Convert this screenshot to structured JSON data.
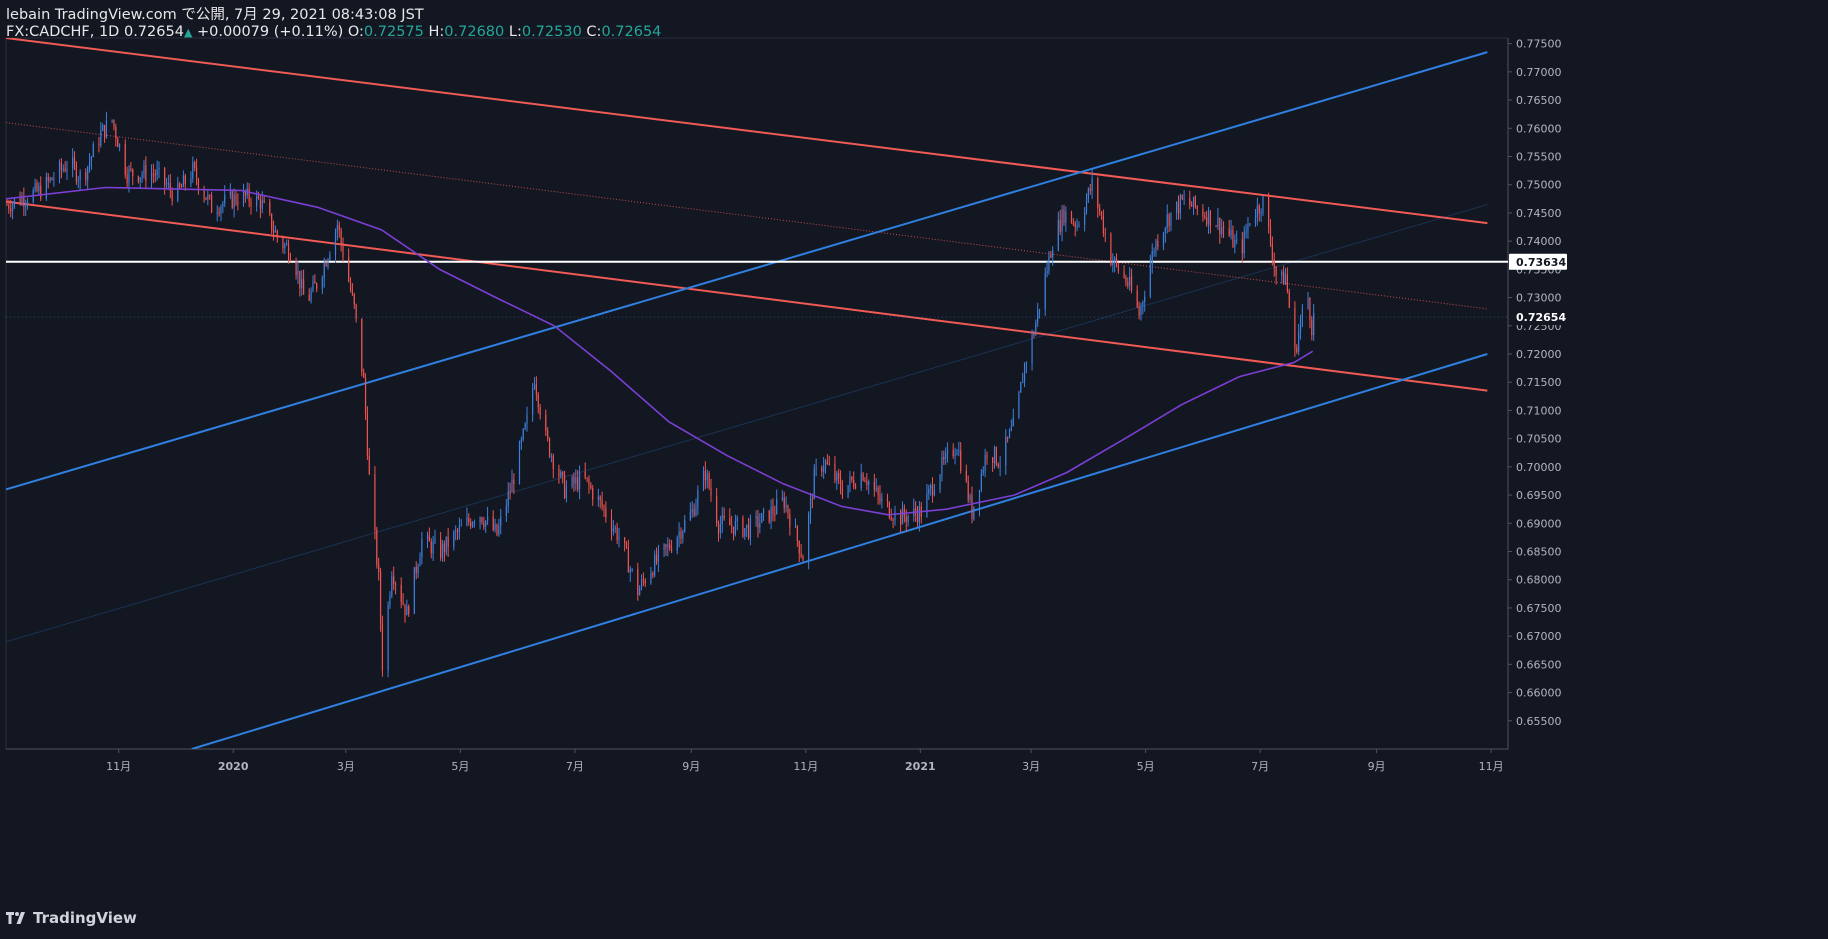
{
  "header": {
    "publish_line": "lebain TradingView.com で公開, 7月 29, 2021 08:43:08 JST",
    "symbol": "FX:CADCHF, 1D",
    "last": "0.72654",
    "change_arrow": "▲",
    "change": "+0.00079 (+0.11%)",
    "o_label": "O:",
    "o_value": "0.72575",
    "h_label": "H:",
    "h_value": "0.72680",
    "l_label": "L:",
    "l_value": "0.72530",
    "c_label": "C:",
    "c_value": "0.72654"
  },
  "footer": {
    "brand": "TradingView",
    "logo_icon": "tradingview-logo-icon"
  },
  "colors": {
    "background": "#131722",
    "up": "#3d7fd9",
    "down": "#ef5350",
    "red_line": "#f15a55",
    "blue_line": "#2f80e0",
    "ma": "#7b3fd4",
    "horizontal": "#ffffff",
    "axis_text": "#b2b5be"
  },
  "chart_data": {
    "type": "candlestick",
    "symbol": "FX:CADCHF",
    "interval": "1D",
    "x_range": [
      "2019-09-02",
      "2021-11-10"
    ],
    "ylim": [
      0.65,
      0.776
    ],
    "y_ticks": [
      "0.65500",
      "0.66000",
      "0.66500",
      "0.67000",
      "0.67500",
      "0.68000",
      "0.68500",
      "0.69000",
      "0.69500",
      "0.70000",
      "0.70500",
      "0.71000",
      "0.71500",
      "0.72000",
      "0.72500",
      "0.73000",
      "0.73500",
      "0.74000",
      "0.74500",
      "0.75000",
      "0.75500",
      "0.76000",
      "0.76500",
      "0.77000",
      "0.77500"
    ],
    "x_ticks": [
      {
        "date": "2019-11-01",
        "label": "11月"
      },
      {
        "date": "2020-01-01",
        "label": "2020"
      },
      {
        "date": "2020-03-01",
        "label": "3月"
      },
      {
        "date": "2020-05-01",
        "label": "5月"
      },
      {
        "date": "2020-07-01",
        "label": "7月"
      },
      {
        "date": "2020-09-01",
        "label": "9月"
      },
      {
        "date": "2020-11-01",
        "label": "11月"
      },
      {
        "date": "2021-01-01",
        "label": "2021"
      },
      {
        "date": "2021-03-01",
        "label": "3月"
      },
      {
        "date": "2021-05-01",
        "label": "5月"
      },
      {
        "date": "2021-07-01",
        "label": "7月"
      },
      {
        "date": "2021-09-01",
        "label": "9月"
      },
      {
        "date": "2021-11-01",
        "label": "11月"
      }
    ],
    "price_path": [
      [
        "2019-09-02",
        0.7465
      ],
      [
        "2019-09-20",
        0.749
      ],
      [
        "2019-10-05",
        0.754
      ],
      [
        "2019-10-12",
        0.751
      ],
      [
        "2019-10-22",
        0.759
      ],
      [
        "2019-10-28",
        0.7615
      ],
      [
        "2019-11-05",
        0.752
      ],
      [
        "2019-11-20",
        0.752
      ],
      [
        "2019-12-01",
        0.748
      ],
      [
        "2019-12-10",
        0.7525
      ],
      [
        "2019-12-20",
        0.746
      ],
      [
        "2020-01-05",
        0.748
      ],
      [
        "2020-01-15",
        0.747
      ],
      [
        "2020-01-25",
        0.74
      ],
      [
        "2020-02-01",
        0.738
      ],
      [
        "2020-02-08",
        0.729
      ],
      [
        "2020-02-15",
        0.733
      ],
      [
        "2020-02-25",
        0.743
      ],
      [
        "2020-03-05",
        0.728
      ],
      [
        "2020-03-10",
        0.715
      ],
      [
        "2020-03-13",
        0.698
      ],
      [
        "2020-03-18",
        0.68
      ],
      [
        "2020-03-20",
        0.665
      ],
      [
        "2020-03-25",
        0.682
      ],
      [
        "2020-04-02",
        0.674
      ],
      [
        "2020-04-10",
        0.687
      ],
      [
        "2020-04-20",
        0.685
      ],
      [
        "2020-05-01",
        0.689
      ],
      [
        "2020-05-10",
        0.692
      ],
      [
        "2020-05-20",
        0.688
      ],
      [
        "2020-05-28",
        0.697
      ],
      [
        "2020-06-05",
        0.708
      ],
      [
        "2020-06-09",
        0.716
      ],
      [
        "2020-06-15",
        0.705
      ],
      [
        "2020-06-25",
        0.696
      ],
      [
        "2020-07-05",
        0.698
      ],
      [
        "2020-07-15",
        0.693
      ],
      [
        "2020-07-25",
        0.687
      ],
      [
        "2020-08-03",
        0.678
      ],
      [
        "2020-08-10",
        0.682
      ],
      [
        "2020-08-20",
        0.686
      ],
      [
        "2020-09-01",
        0.692
      ],
      [
        "2020-09-08",
        0.699
      ],
      [
        "2020-09-15",
        0.69
      ],
      [
        "2020-10-01",
        0.689
      ],
      [
        "2020-10-10",
        0.691
      ],
      [
        "2020-10-20",
        0.694
      ],
      [
        "2020-10-30",
        0.684
      ],
      [
        "2020-11-05",
        0.698
      ],
      [
        "2020-11-10",
        0.701
      ],
      [
        "2020-11-20",
        0.696
      ],
      [
        "2020-12-01",
        0.699
      ],
      [
        "2020-12-10",
        0.694
      ],
      [
        "2020-12-20",
        0.691
      ],
      [
        "2021-01-01",
        0.692
      ],
      [
        "2021-01-10",
        0.699
      ],
      [
        "2021-01-20",
        0.704
      ],
      [
        "2021-01-28",
        0.692
      ],
      [
        "2021-02-05",
        0.703
      ],
      [
        "2021-02-12",
        0.701
      ],
      [
        "2021-02-20",
        0.708
      ],
      [
        "2021-02-25",
        0.718
      ],
      [
        "2021-03-02",
        0.724
      ],
      [
        "2021-03-07",
        0.732
      ],
      [
        "2021-03-12",
        0.74
      ],
      [
        "2021-03-18",
        0.745
      ],
      [
        "2021-03-25",
        0.743
      ],
      [
        "2021-04-02",
        0.75
      ],
      [
        "2021-04-07",
        0.744
      ],
      [
        "2021-04-12",
        0.737
      ],
      [
        "2021-04-22",
        0.732
      ],
      [
        "2021-04-27",
        0.727
      ],
      [
        "2021-05-05",
        0.739
      ],
      [
        "2021-05-12",
        0.744
      ],
      [
        "2021-05-20",
        0.747
      ],
      [
        "2021-05-27",
        0.746
      ],
      [
        "2021-06-05",
        0.744
      ],
      [
        "2021-06-12",
        0.742
      ],
      [
        "2021-06-20",
        0.738
      ],
      [
        "2021-06-25",
        0.744
      ],
      [
        "2021-07-02",
        0.747
      ],
      [
        "2021-07-07",
        0.738
      ],
      [
        "2021-07-10",
        0.732
      ],
      [
        "2021-07-14",
        0.734
      ],
      [
        "2021-07-19",
        0.72
      ],
      [
        "2021-07-22",
        0.726
      ],
      [
        "2021-07-26",
        0.73
      ],
      [
        "2021-07-28",
        0.725
      ],
      [
        "2021-07-29",
        0.72654
      ]
    ],
    "moving_average": [
      [
        "2019-09-02",
        0.7475
      ],
      [
        "2019-10-25",
        0.7495
      ],
      [
        "2020-01-05",
        0.749
      ],
      [
        "2020-02-15",
        0.746
      ],
      [
        "2020-03-20",
        0.742
      ],
      [
        "2020-04-20",
        0.735
      ],
      [
        "2020-05-20",
        0.73
      ],
      [
        "2020-06-20",
        0.725
      ],
      [
        "2020-07-20",
        0.717
      ],
      [
        "2020-08-20",
        0.708
      ],
      [
        "2020-09-20",
        0.702
      ],
      [
        "2020-10-20",
        0.697
      ],
      [
        "2020-11-20",
        0.693
      ],
      [
        "2020-12-15",
        0.6915
      ],
      [
        "2021-01-15",
        0.6925
      ],
      [
        "2021-02-20",
        0.695
      ],
      [
        "2021-03-20",
        0.699
      ],
      [
        "2021-04-20",
        0.705
      ],
      [
        "2021-05-20",
        0.711
      ],
      [
        "2021-06-20",
        0.716
      ],
      [
        "2021-07-19",
        0.7185
      ],
      [
        "2021-07-29",
        0.7205
      ]
    ],
    "trendlines": [
      {
        "role": "descending-channel-upper",
        "style": "solid",
        "color": "red",
        "from": [
          "2019-09-02",
          0.776
        ],
        "to": [
          "2021-10-30",
          0.7432
        ]
      },
      {
        "role": "descending-channel-mid",
        "style": "dotted",
        "color": "red",
        "from": [
          "2019-09-02",
          0.761
        ],
        "to": [
          "2021-10-30",
          0.728
        ]
      },
      {
        "role": "descending-channel-lower",
        "style": "solid",
        "color": "red",
        "from": [
          "2019-09-02",
          0.747
        ],
        "to": [
          "2021-10-30",
          0.7135
        ]
      },
      {
        "role": "ascending-channel-upper",
        "style": "solid",
        "color": "blue",
        "from": [
          "2019-09-02",
          0.696
        ],
        "to": [
          "2021-10-30",
          0.7735
        ]
      },
      {
        "role": "ascending-channel-lower",
        "style": "solid",
        "color": "blue",
        "from": [
          "2019-12-10",
          0.65
        ],
        "to": [
          "2021-10-30",
          0.72
        ]
      },
      {
        "role": "ascending-channel-mid",
        "style": "faint",
        "color": "blue",
        "from": [
          "2019-09-02",
          0.669
        ],
        "to": [
          "2021-10-30",
          0.7465
        ]
      }
    ],
    "horizontal_lines": [
      {
        "price": 0.73634,
        "label": "0.73634",
        "color": "white"
      }
    ],
    "last_price": {
      "price": 0.72654,
      "label": "0.72654"
    }
  }
}
